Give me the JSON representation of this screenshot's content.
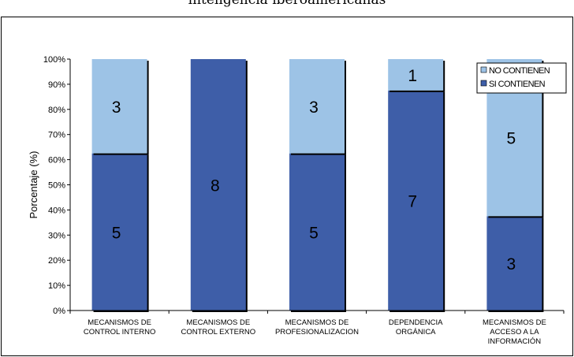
{
  "chart_data": {
    "type": "bar",
    "stacked": true,
    "normalized": true,
    "title": "inteligencia iberoamericanas",
    "ylabel": "Porcentaje (%)",
    "xlabel": "",
    "ylim": [
      0,
      100
    ],
    "y_ticks": [
      "0%",
      "10%",
      "20%",
      "30%",
      "40%",
      "50%",
      "60%",
      "70%",
      "80%",
      "90%",
      "100%"
    ],
    "categories": [
      [
        "MECANISMOS DE",
        "CONTROL INTERNO"
      ],
      [
        "MECANISMOS DE",
        "CONTROL EXTERNO"
      ],
      [
        "MECANISMOS DE",
        "PROFESIONALIZACION"
      ],
      [
        "DEPENDENCIA",
        "ORGÁNICA"
      ],
      [
        "MECANISMOS DE",
        "ACCESO A LA",
        "INFORMACIÓN"
      ]
    ],
    "series": [
      {
        "name": "SI CONTIENEN",
        "color": "#3E5EA8",
        "values": [
          5,
          8,
          5,
          7,
          3
        ]
      },
      {
        "name": "NO CONTIENEN",
        "color": "#9DC3E6",
        "values": [
          3,
          0,
          3,
          1,
          5
        ]
      }
    ],
    "legend": {
      "position": "top-right",
      "entries": [
        "NO CONTIENEN",
        "SI CONTIENEN"
      ]
    },
    "grid": false
  }
}
